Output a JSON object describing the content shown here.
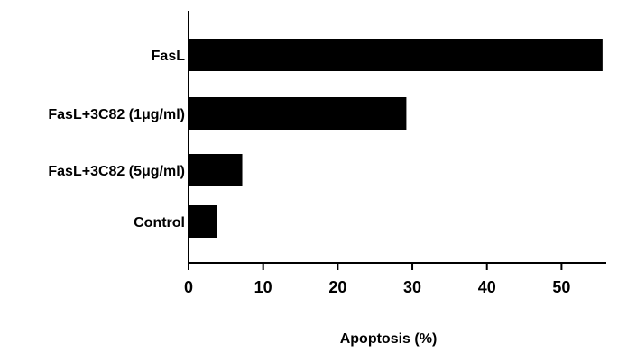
{
  "chart_data": {
    "type": "bar",
    "orientation": "horizontal",
    "title": "",
    "xlabel": "Apoptosis (%)",
    "ylabel": "",
    "xlim": [
      0,
      56
    ],
    "xticks": [
      0,
      10,
      20,
      30,
      40,
      50
    ],
    "categories": [
      "FasL",
      "FasL+3C82 (1μg/ml)",
      "FasL+3C82 (5μg/ml)",
      "Control"
    ],
    "values": [
      55.5,
      29.2,
      7.2,
      3.8
    ],
    "bar_color": "#000000",
    "grid": false,
    "legend": "none"
  }
}
